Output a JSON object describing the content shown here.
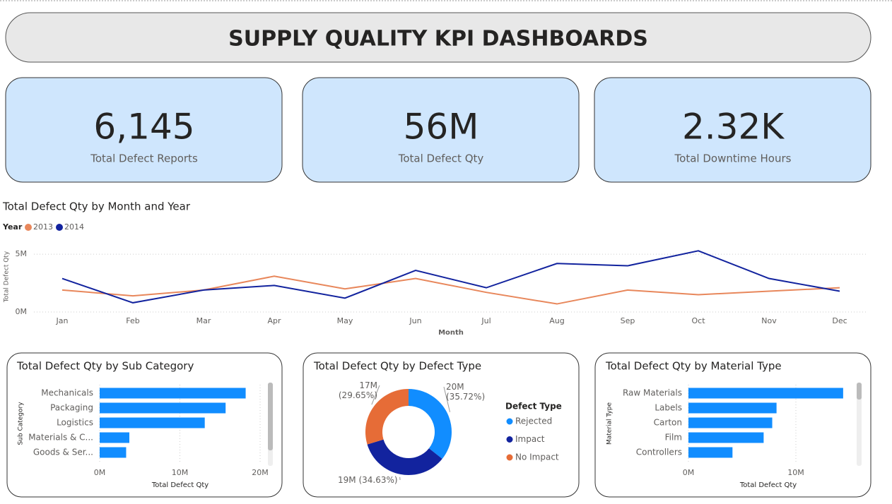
{
  "title": "SUPPLY QUALITY KPI DASHBOARDS",
  "kpis": [
    {
      "value": "6,145",
      "label": "Total Defect Reports"
    },
    {
      "value": "56M",
      "label": "Total Defect Qty"
    },
    {
      "value": "2.32K",
      "label": "Total Downtime Hours"
    }
  ],
  "chart_data": [
    {
      "type": "line",
      "title": "Total Defect Qty by Month and Year",
      "x_label": "Month",
      "y_label": "Total Defect Qty",
      "legend_title": "Year",
      "categories": [
        "Jan",
        "Feb",
        "Mar",
        "Apr",
        "May",
        "Jun",
        "Jul",
        "Aug",
        "Sep",
        "Oct",
        "Nov",
        "Dec"
      ],
      "series": [
        {
          "name": "2013",
          "color": "#e8875b",
          "values": [
            1900000,
            1400000,
            1900000,
            3100000,
            2000000,
            2900000,
            1700000,
            700000,
            1900000,
            1500000,
            1800000,
            2100000
          ]
        },
        {
          "name": "2014",
          "color": "#12239e",
          "values": [
            2900000,
            800000,
            1900000,
            2300000,
            1200000,
            3600000,
            2100000,
            4200000,
            4000000,
            5300000,
            2900000,
            1800000
          ]
        }
      ],
      "ylim": [
        0,
        5500000
      ],
      "yticks": [
        {
          "value": 0,
          "label": "0M"
        },
        {
          "value": 5000000,
          "label": "5M"
        }
      ],
      "grid": true
    },
    {
      "type": "hbar",
      "title": "Total Defect Qty by Sub Category",
      "x_label": "Total Defect Qty",
      "y_label": "Sub Category",
      "categories": [
        "Mechanicals",
        "Packaging",
        "Logistics",
        "Materials & C...",
        "Goods & Ser..."
      ],
      "values": [
        18200000,
        15700000,
        13100000,
        3700000,
        3300000
      ],
      "color": "#118dff",
      "xlim": [
        0,
        20000000
      ],
      "xticks": [
        {
          "value": 0,
          "label": "0M"
        },
        {
          "value": 10000000,
          "label": "10M"
        },
        {
          "value": 20000000,
          "label": "20M"
        }
      ],
      "grid": true
    },
    {
      "type": "donut",
      "title": "Total Defect Qty by Defect Type",
      "legend_title": "Defect Type",
      "categories": [
        "Rejected",
        "Impact",
        "No Impact"
      ],
      "values": [
        35.72,
        34.63,
        29.65
      ],
      "value_labels": [
        "20M (35.72%)",
        "19M (34.63%)",
        "17M (29.65%)"
      ],
      "colors": [
        "#118dff",
        "#12239e",
        "#e66c37"
      ]
    },
    {
      "type": "hbar",
      "title": "Total Defect Qty by Material Type",
      "x_label": "Total Defect Qty",
      "y_label": "Material Type",
      "categories": [
        "Raw Materials",
        "Labels",
        "Carton",
        "Film",
        "Controllers"
      ],
      "values": [
        14400000,
        8200000,
        7800000,
        7000000,
        4100000
      ],
      "color": "#118dff",
      "xlim": [
        0,
        15000000
      ],
      "xticks": [
        {
          "value": 0,
          "label": "0M"
        },
        {
          "value": 10000000,
          "label": "10M"
        }
      ],
      "grid": true
    }
  ]
}
